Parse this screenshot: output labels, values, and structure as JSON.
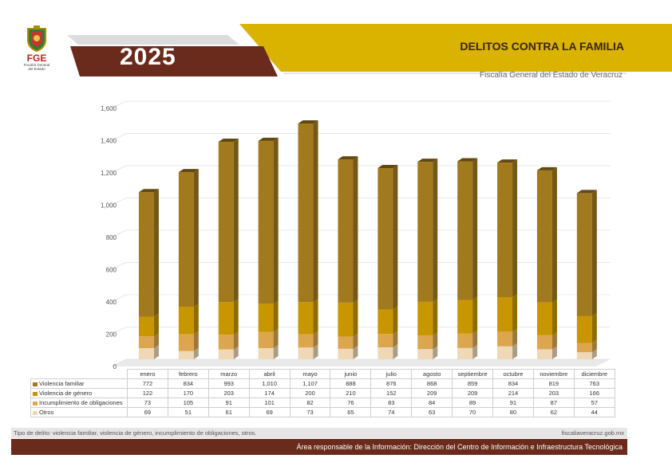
{
  "header": {
    "year": "2025",
    "title": "DELITOS CONTRA LA FAMILIA",
    "subtitle": "Fiscalía General del Estado de Veracruz",
    "logo_text": "FGE",
    "logo_sub1": "Fiscalía General",
    "logo_sub2": "del Estado"
  },
  "colors": {
    "gold": "#D9B300",
    "brown": "#6A2B1C",
    "series": [
      "#A27A1E",
      "#C79600",
      "#DCA64E",
      "#EFD8B6"
    ]
  },
  "chart_data": {
    "type": "bar",
    "stacked": true,
    "categories": [
      "enero",
      "febrero",
      "marzo",
      "abril",
      "mayo",
      "junio",
      "julio",
      "agosto",
      "septiembre",
      "octubre",
      "noviembre",
      "diciembre"
    ],
    "series": [
      {
        "name": "Violencia familiar",
        "values": [
          772,
          834,
          993,
          1010,
          1107,
          888,
          876,
          868,
          859,
          834,
          819,
          763
        ]
      },
      {
        "name": "Violencia de género",
        "values": [
          122,
          170,
          203,
          174,
          200,
          210,
          152,
          209,
          209,
          214,
          203,
          166
        ]
      },
      {
        "name": "Incumplimiento de obligaciones",
        "values": [
          73,
          105,
          91,
          101,
          82,
          76,
          83,
          84,
          89,
          91,
          87,
          57
        ]
      },
      {
        "name": "Otros",
        "values": [
          69,
          51,
          61,
          69,
          73,
          65,
          74,
          63,
          70,
          80,
          62,
          44
        ]
      }
    ],
    "table_values": [
      [
        "772",
        "834",
        "993",
        "1,010",
        "1,107",
        "888",
        "876",
        "868",
        "859",
        "834",
        "819",
        "763"
      ],
      [
        "122",
        "170",
        "203",
        "174",
        "200",
        "210",
        "152",
        "209",
        "209",
        "214",
        "203",
        "166"
      ],
      [
        "73",
        "105",
        "91",
        "101",
        "82",
        "76",
        "83",
        "84",
        "89",
        "91",
        "87",
        "57"
      ],
      [
        "69",
        "51",
        "61",
        "69",
        "73",
        "65",
        "74",
        "63",
        "70",
        "80",
        "62",
        "44"
      ]
    ],
    "yticks": [
      "0",
      "200",
      "400",
      "600",
      "800",
      "1,000",
      "1,200",
      "1,400",
      "1,600"
    ],
    "ylim": [
      0,
      1600
    ],
    "grid": true,
    "legend": "data-table"
  },
  "footer": {
    "note": "Tipo de delito: violencia familiar, violencia de género, incumplimiento de obligaciones, otros.",
    "website": "fiscaliaveracruz.gob.mx",
    "responsible": "Área responsable de la Información: Dirección del Centro de Información e Infraestructura Tecnológica"
  }
}
